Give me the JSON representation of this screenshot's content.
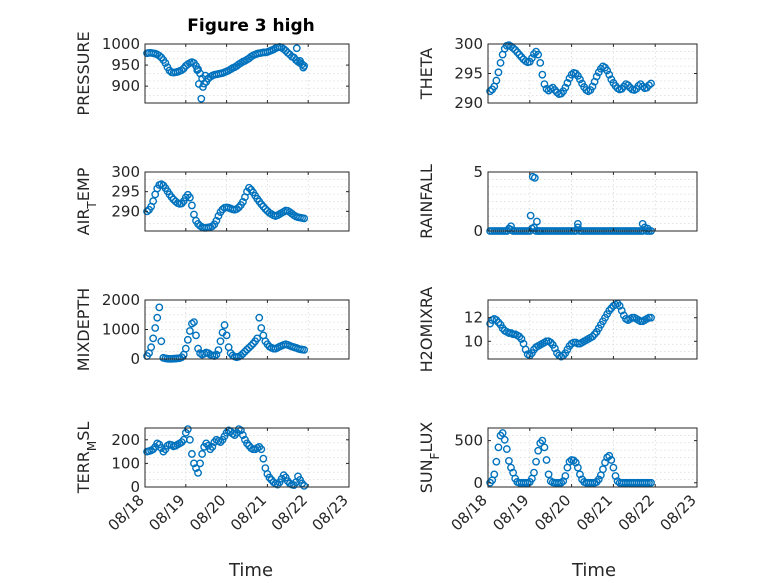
{
  "figure": {
    "title": "Figure 3 high",
    "x_label": "Time",
    "x_tick_labels": [
      "08/18",
      "08/19",
      "08/20",
      "08/21",
      "08/22",
      "08/23"
    ]
  },
  "colors": {
    "marker": "#0072BD",
    "axes": "#262626",
    "grid": "#d9d9d9",
    "background": "#ffffff"
  },
  "chart_data": [
    {
      "type": "scatter",
      "panel": "PRESSURE",
      "ylabel": "PRESSURE",
      "grid": true,
      "ylim": [
        860,
        1000
      ],
      "yticks": [
        900,
        950,
        1000
      ],
      "xlim": [
        0,
        5
      ],
      "x": [
        0.05,
        0.1,
        0.15,
        0.2,
        0.25,
        0.3,
        0.35,
        0.4,
        0.45,
        0.5,
        0.55,
        0.6,
        0.65,
        0.7,
        0.75,
        0.8,
        0.85,
        0.9,
        0.95,
        1.0,
        1.05,
        1.1,
        1.15,
        1.2,
        1.25,
        1.3,
        1.35,
        1.4,
        1.45,
        1.5,
        1.55,
        1.6,
        1.65,
        1.7,
        1.75,
        1.8,
        1.85,
        1.9,
        1.95,
        2.0,
        2.05,
        2.1,
        2.15,
        2.2,
        2.25,
        2.3,
        2.35,
        2.4,
        2.45,
        2.5,
        2.55,
        2.6,
        2.65,
        2.7,
        2.75,
        2.8,
        2.85,
        2.9,
        2.95,
        3.0,
        3.05,
        3.1,
        3.15,
        3.2,
        3.25,
        3.3,
        3.35,
        3.4,
        3.45,
        3.5,
        3.55,
        3.6,
        3.65,
        3.7,
        3.75,
        3.8,
        3.85,
        3.9,
        1.28,
        1.32,
        1.38,
        1.42,
        1.48,
        3.72,
        3.8,
        3.88
      ],
      "y": [
        978,
        979,
        979,
        978,
        977,
        975,
        972,
        968,
        962,
        955,
        945,
        937,
        933,
        932,
        933,
        934,
        936,
        938,
        942,
        948,
        952,
        955,
        957,
        955,
        948,
        940,
        930,
        918,
        906,
        910,
        918,
        922,
        925,
        927,
        928,
        929,
        930,
        931,
        933,
        935,
        937,
        940,
        943,
        945,
        948,
        952,
        955,
        958,
        960,
        963,
        966,
        970,
        973,
        975,
        977,
        978,
        979,
        980,
        980,
        981,
        983,
        985,
        987,
        990,
        992,
        993,
        991,
        988,
        984,
        979,
        975,
        970,
        968,
        962,
        958,
        955,
        952,
        948,
        938,
        905,
        870,
        898,
        925,
        990,
        960,
        944
      ]
    },
    {
      "type": "scatter",
      "panel": "THETA",
      "ylabel": "THETA",
      "grid": true,
      "ylim": [
        290,
        300
      ],
      "yticks": [
        290,
        295,
        300
      ],
      "xlim": [
        0,
        5
      ],
      "x": [
        0.05,
        0.1,
        0.15,
        0.2,
        0.25,
        0.3,
        0.35,
        0.4,
        0.45,
        0.5,
        0.55,
        0.6,
        0.65,
        0.7,
        0.75,
        0.8,
        0.85,
        0.9,
        0.95,
        1.0,
        1.05,
        1.1,
        1.15,
        1.2,
        1.25,
        1.3,
        1.35,
        1.4,
        1.45,
        1.5,
        1.55,
        1.6,
        1.65,
        1.7,
        1.75,
        1.8,
        1.85,
        1.9,
        1.95,
        2.0,
        2.05,
        2.1,
        2.15,
        2.2,
        2.25,
        2.3,
        2.35,
        2.4,
        2.45,
        2.5,
        2.55,
        2.6,
        2.65,
        2.7,
        2.75,
        2.8,
        2.85,
        2.9,
        2.95,
        3.0,
        3.05,
        3.1,
        3.15,
        3.2,
        3.25,
        3.3,
        3.35,
        3.4,
        3.45,
        3.5,
        3.55,
        3.6,
        3.65,
        3.7,
        3.75,
        3.8,
        3.85,
        3.9
      ],
      "y": [
        292.0,
        292.3,
        292.8,
        293.8,
        295.2,
        296.8,
        298.2,
        299.2,
        299.7,
        299.8,
        299.6,
        299.3,
        299.0,
        298.6,
        298.2,
        297.8,
        297.4,
        297.1,
        296.9,
        297.0,
        297.6,
        298.3,
        298.7,
        298.2,
        296.8,
        294.8,
        293.2,
        292.4,
        292.1,
        292.4,
        292.6,
        292.2,
        291.8,
        291.5,
        291.6,
        292.0,
        292.6,
        293.4,
        294.2,
        294.8,
        295.1,
        295.0,
        294.6,
        294.0,
        293.3,
        292.7,
        292.2,
        292.0,
        292.2,
        292.8,
        293.6,
        294.5,
        295.2,
        295.8,
        296.2,
        296.0,
        295.5,
        294.8,
        294.0,
        293.4,
        292.9,
        292.5,
        292.3,
        292.4,
        292.8,
        293.2,
        293.0,
        292.6,
        292.3,
        292.2,
        292.4,
        292.9,
        293.2,
        292.8,
        292.5,
        292.6,
        293.0,
        293.3
      ]
    },
    {
      "type": "scatter",
      "panel": "AIR_TEMP",
      "ylabel": "AIR_TEMP",
      "grid": true,
      "ylim": [
        285,
        300
      ],
      "yticks": [
        290,
        295,
        300
      ],
      "xlim": [
        0,
        5
      ],
      "x": [
        0.05,
        0.1,
        0.15,
        0.2,
        0.25,
        0.3,
        0.35,
        0.4,
        0.45,
        0.5,
        0.55,
        0.6,
        0.65,
        0.7,
        0.75,
        0.8,
        0.85,
        0.9,
        0.95,
        1.0,
        1.05,
        1.1,
        1.15,
        1.2,
        1.25,
        1.3,
        1.35,
        1.4,
        1.45,
        1.5,
        1.55,
        1.6,
        1.65,
        1.7,
        1.75,
        1.8,
        1.85,
        1.9,
        1.95,
        2.0,
        2.05,
        2.1,
        2.15,
        2.2,
        2.25,
        2.3,
        2.35,
        2.4,
        2.45,
        2.5,
        2.55,
        2.6,
        2.65,
        2.7,
        2.75,
        2.8,
        2.85,
        2.9,
        2.95,
        3.0,
        3.05,
        3.1,
        3.15,
        3.2,
        3.25,
        3.3,
        3.35,
        3.4,
        3.45,
        3.5,
        3.55,
        3.6,
        3.65,
        3.7,
        3.75,
        3.8,
        3.85,
        3.9
      ],
      "y": [
        290.0,
        290.4,
        291.2,
        292.6,
        294.3,
        295.8,
        296.7,
        296.9,
        296.6,
        295.9,
        295.1,
        294.3,
        293.6,
        293.0,
        292.5,
        292.1,
        291.9,
        292.0,
        292.6,
        293.5,
        294.2,
        293.5,
        291.5,
        289.2,
        287.6,
        286.8,
        286.3,
        286.0,
        285.8,
        285.8,
        285.9,
        286.0,
        286.2,
        286.7,
        287.6,
        288.8,
        289.8,
        290.5,
        290.9,
        291.0,
        290.9,
        290.7,
        290.5,
        290.4,
        290.6,
        291.0,
        291.6,
        292.4,
        293.6,
        295.0,
        296.0,
        295.5,
        294.8,
        294.0,
        293.2,
        292.5,
        291.8,
        291.2,
        290.6,
        290.1,
        289.6,
        289.3,
        289.0,
        288.8,
        289.0,
        289.3,
        289.6,
        289.9,
        290.2,
        290.1,
        289.8,
        289.4,
        289.0,
        288.7,
        288.5,
        288.4,
        288.3,
        288.2
      ]
    },
    {
      "type": "scatter",
      "panel": "RAINFALL",
      "ylabel": "RAINFALL",
      "grid": true,
      "ylim": [
        0,
        5
      ],
      "yticks": [
        0,
        5
      ],
      "xlim": [
        0,
        5
      ],
      "x": [
        0.05,
        0.1,
        0.15,
        0.2,
        0.25,
        0.3,
        0.35,
        0.4,
        0.45,
        0.5,
        0.55,
        0.6,
        0.65,
        0.7,
        0.75,
        0.8,
        0.85,
        0.9,
        0.95,
        1.0,
        1.05,
        1.1,
        1.15,
        1.2,
        1.25,
        1.3,
        1.35,
        1.4,
        1.45,
        1.5,
        1.55,
        1.6,
        1.65,
        1.7,
        1.75,
        1.8,
        1.85,
        1.9,
        1.95,
        2.0,
        2.05,
        2.1,
        2.15,
        2.2,
        2.25,
        2.3,
        2.35,
        2.4,
        2.45,
        2.5,
        2.55,
        2.6,
        2.65,
        2.7,
        2.75,
        2.8,
        2.85,
        2.9,
        2.95,
        3.0,
        3.05,
        3.1,
        3.15,
        3.2,
        3.25,
        3.3,
        3.35,
        3.4,
        3.45,
        3.5,
        3.55,
        3.6,
        3.65,
        3.7,
        3.75,
        3.8,
        3.85,
        3.9,
        1.02,
        1.07,
        1.12,
        1.17,
        1.22,
        0.55,
        2.15,
        3.7,
        3.82
      ],
      "y": [
        0,
        0,
        0,
        0,
        0,
        0,
        0,
        0,
        0,
        0.2,
        0.1,
        0,
        0,
        0,
        0,
        0,
        0,
        0,
        0,
        0,
        0.2,
        0.3,
        0,
        0,
        0,
        0,
        0,
        0,
        0,
        0,
        0,
        0,
        0,
        0,
        0,
        0,
        0,
        0,
        0,
        0,
        0,
        0,
        0.6,
        0,
        0,
        0,
        0,
        0,
        0,
        0,
        0,
        0,
        0,
        0,
        0,
        0,
        0,
        0,
        0,
        0,
        0,
        0,
        0,
        0,
        0,
        0,
        0,
        0,
        0,
        0,
        0,
        0,
        0,
        0,
        0.3,
        0,
        0,
        0,
        1.3,
        4.6,
        4.5,
        0.8,
        0,
        0.4,
        0.3,
        0.6,
        0.2
      ]
    },
    {
      "type": "scatter",
      "panel": "MIXDEPTH",
      "ylabel": "MIXDEPTH",
      "grid": true,
      "ylim": [
        0,
        2000
      ],
      "yticks": [
        0,
        1000,
        2000
      ],
      "xlim": [
        0,
        5
      ],
      "x": [
        0.05,
        0.1,
        0.15,
        0.2,
        0.25,
        0.3,
        0.35,
        0.4,
        0.45,
        0.5,
        0.55,
        0.6,
        0.65,
        0.7,
        0.75,
        0.8,
        0.85,
        0.9,
        0.95,
        1.0,
        1.05,
        1.1,
        1.15,
        1.2,
        1.25,
        1.3,
        1.35,
        1.4,
        1.45,
        1.5,
        1.55,
        1.6,
        1.65,
        1.7,
        1.75,
        1.8,
        1.85,
        1.9,
        1.95,
        2.0,
        2.05,
        2.1,
        2.15,
        2.2,
        2.25,
        2.3,
        2.35,
        2.4,
        2.45,
        2.5,
        2.55,
        2.6,
        2.65,
        2.7,
        2.75,
        2.8,
        2.85,
        2.9,
        2.95,
        3.0,
        3.05,
        3.1,
        3.15,
        3.2,
        3.25,
        3.3,
        3.35,
        3.4,
        3.45,
        3.5,
        3.55,
        3.6,
        3.65,
        3.7,
        3.75,
        3.8,
        3.85,
        3.9
      ],
      "y": [
        100,
        200,
        400,
        700,
        1050,
        1400,
        1750,
        600,
        40,
        20,
        10,
        5,
        5,
        10,
        15,
        20,
        30,
        60,
        150,
        350,
        650,
        950,
        1200,
        1250,
        800,
        350,
        200,
        150,
        180,
        220,
        200,
        150,
        120,
        100,
        150,
        300,
        600,
        900,
        1150,
        800,
        400,
        200,
        120,
        80,
        60,
        80,
        120,
        180,
        250,
        320,
        380,
        450,
        520,
        600,
        700,
        1400,
        1050,
        800,
        600,
        500,
        420,
        380,
        350,
        350,
        380,
        420,
        450,
        480,
        500,
        480,
        450,
        420,
        400,
        380,
        350,
        330,
        320,
        310
      ]
    },
    {
      "type": "scatter",
      "panel": "H2OMIXRA",
      "ylabel": "H2OMIXRA",
      "grid": true,
      "ylim": [
        8.5,
        13.5
      ],
      "yticks": [
        10,
        12
      ],
      "xlim": [
        0,
        5
      ],
      "x": [
        0.05,
        0.1,
        0.15,
        0.2,
        0.25,
        0.3,
        0.35,
        0.4,
        0.45,
        0.5,
        0.55,
        0.6,
        0.65,
        0.7,
        0.75,
        0.8,
        0.85,
        0.9,
        0.95,
        1.0,
        1.05,
        1.1,
        1.15,
        1.2,
        1.25,
        1.3,
        1.35,
        1.4,
        1.45,
        1.5,
        1.55,
        1.6,
        1.65,
        1.7,
        1.75,
        1.8,
        1.85,
        1.9,
        1.95,
        2.0,
        2.05,
        2.1,
        2.15,
        2.2,
        2.25,
        2.3,
        2.35,
        2.4,
        2.45,
        2.5,
        2.55,
        2.6,
        2.65,
        2.7,
        2.75,
        2.8,
        2.85,
        2.9,
        2.95,
        3.0,
        3.05,
        3.1,
        3.15,
        3.2,
        3.25,
        3.3,
        3.35,
        3.4,
        3.45,
        3.5,
        3.55,
        3.6,
        3.65,
        3.7,
        3.75,
        3.8,
        3.85,
        3.9
      ],
      "y": [
        11.5,
        11.8,
        11.9,
        11.8,
        11.6,
        11.4,
        11.1,
        10.9,
        10.8,
        10.7,
        10.7,
        10.6,
        10.6,
        10.5,
        10.4,
        10.2,
        9.8,
        9.3,
        8.9,
        8.8,
        9.0,
        9.3,
        9.5,
        9.6,
        9.7,
        9.8,
        9.9,
        10.0,
        10.0,
        9.9,
        9.7,
        9.4,
        9.0,
        8.8,
        8.7,
        8.8,
        9.0,
        9.3,
        9.6,
        9.8,
        9.9,
        9.9,
        9.8,
        9.8,
        9.9,
        10.0,
        10.1,
        10.2,
        10.3,
        10.4,
        10.6,
        10.8,
        11.1,
        11.4,
        11.7,
        12.0,
        12.3,
        12.6,
        12.8,
        13.0,
        13.1,
        13.2,
        13.0,
        12.6,
        12.2,
        11.9,
        11.8,
        11.9,
        12.0,
        12.0,
        11.9,
        11.8,
        11.7,
        11.7,
        11.8,
        11.9,
        12.0,
        12.0
      ]
    },
    {
      "type": "scatter",
      "panel": "TERR_MSL",
      "ylabel": "TERR_MSL",
      "grid": true,
      "ylim": [
        0,
        250
      ],
      "yticks": [
        0,
        100,
        200
      ],
      "xlim": [
        0,
        5
      ],
      "x": [
        0.05,
        0.1,
        0.15,
        0.2,
        0.25,
        0.3,
        0.35,
        0.4,
        0.45,
        0.5,
        0.55,
        0.6,
        0.65,
        0.7,
        0.75,
        0.8,
        0.85,
        0.9,
        0.95,
        1.0,
        1.05,
        1.1,
        1.15,
        1.2,
        1.25,
        1.3,
        1.35,
        1.4,
        1.45,
        1.5,
        1.55,
        1.6,
        1.65,
        1.7,
        1.75,
        1.8,
        1.85,
        1.9,
        1.95,
        2.0,
        2.05,
        2.1,
        2.15,
        2.2,
        2.25,
        2.3,
        2.35,
        2.4,
        2.45,
        2.5,
        2.55,
        2.6,
        2.65,
        2.7,
        2.75,
        2.8,
        2.85,
        2.9,
        2.95,
        3.0,
        3.05,
        3.1,
        3.15,
        3.2,
        3.25,
        3.3,
        3.35,
        3.4,
        3.45,
        3.5,
        3.55,
        3.6,
        3.65,
        3.7,
        3.75,
        3.8,
        3.85,
        3.9
      ],
      "y": [
        150,
        152,
        155,
        160,
        170,
        185,
        180,
        165,
        150,
        160,
        175,
        180,
        178,
        172,
        175,
        180,
        185,
        190,
        200,
        230,
        245,
        200,
        140,
        100,
        80,
        60,
        100,
        140,
        170,
        185,
        175,
        160,
        170,
        190,
        200,
        195,
        190,
        200,
        215,
        230,
        240,
        235,
        225,
        220,
        230,
        245,
        240,
        220,
        200,
        185,
        175,
        165,
        160,
        160,
        165,
        170,
        160,
        120,
        80,
        55,
        40,
        30,
        20,
        15,
        10,
        20,
        35,
        50,
        40,
        25,
        15,
        10,
        8,
        20,
        45,
        30,
        15,
        5
      ]
    },
    {
      "type": "scatter",
      "panel": "SUN_FLUX",
      "ylabel": "SUN_FLUX",
      "grid": true,
      "ylim": [
        -50,
        650
      ],
      "yticks": [
        0,
        500
      ],
      "xlim": [
        0,
        5
      ],
      "x": [
        0.05,
        0.1,
        0.15,
        0.2,
        0.25,
        0.3,
        0.35,
        0.4,
        0.45,
        0.5,
        0.55,
        0.6,
        0.65,
        0.7,
        0.75,
        0.8,
        0.85,
        0.9,
        0.95,
        1.0,
        1.05,
        1.1,
        1.15,
        1.2,
        1.25,
        1.3,
        1.35,
        1.4,
        1.45,
        1.5,
        1.55,
        1.6,
        1.65,
        1.7,
        1.75,
        1.8,
        1.85,
        1.9,
        1.95,
        2.0,
        2.05,
        2.1,
        2.15,
        2.2,
        2.25,
        2.3,
        2.35,
        2.4,
        2.45,
        2.5,
        2.55,
        2.6,
        2.65,
        2.7,
        2.75,
        2.8,
        2.85,
        2.9,
        2.95,
        3.0,
        3.05,
        3.1,
        3.15,
        3.2,
        3.25,
        3.3,
        3.35,
        3.4,
        3.45,
        3.5,
        3.55,
        3.6,
        3.65,
        3.7,
        3.75,
        3.8,
        3.85,
        3.9
      ],
      "y": [
        0,
        30,
        100,
        250,
        420,
        560,
        590,
        510,
        400,
        260,
        180,
        120,
        50,
        10,
        0,
        0,
        0,
        0,
        0,
        10,
        50,
        120,
        250,
        380,
        470,
        500,
        420,
        270,
        100,
        20,
        5,
        0,
        0,
        0,
        0,
        20,
        80,
        180,
        250,
        270,
        265,
        240,
        180,
        100,
        40,
        10,
        0,
        0,
        0,
        0,
        0,
        10,
        40,
        90,
        160,
        240,
        300,
        320,
        270,
        180,
        80,
        20,
        0,
        0,
        0,
        0,
        0,
        0,
        0,
        0,
        0,
        0,
        0,
        0,
        0,
        0,
        0,
        0
      ]
    }
  ]
}
